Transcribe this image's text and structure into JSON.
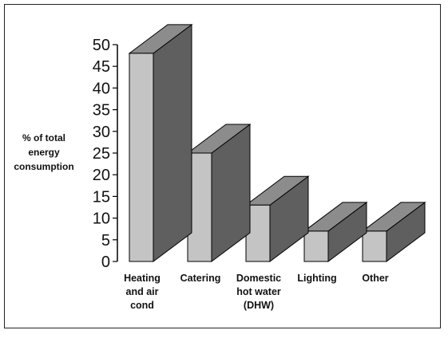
{
  "chart_data": {
    "type": "bar",
    "title": "",
    "ylabel": "% of total energy consumption",
    "xlabel": "",
    "categories": [
      "Heating and air cond",
      "Catering",
      "Domestic hot water (DHW)",
      "Lighting",
      "Other"
    ],
    "category_lines": [
      [
        "Heating",
        "and air",
        "cond"
      ],
      [
        "Catering"
      ],
      [
        "Domestic",
        "hot water",
        "(DHW)"
      ],
      [
        "Lighting"
      ],
      [
        "Other"
      ]
    ],
    "values": [
      48,
      25,
      13,
      7,
      7
    ],
    "ylim": [
      0,
      50
    ],
    "yticks": [
      "0",
      "5",
      "10",
      "15",
      "20",
      "25",
      "30",
      "35",
      "40",
      "45",
      "50"
    ],
    "grid": false,
    "legend": "none",
    "style": "3d",
    "colors": {
      "front": "#c4c4c4",
      "side": "#5f5f5f",
      "top": "#8c8c8c",
      "edge": "#000000"
    }
  }
}
